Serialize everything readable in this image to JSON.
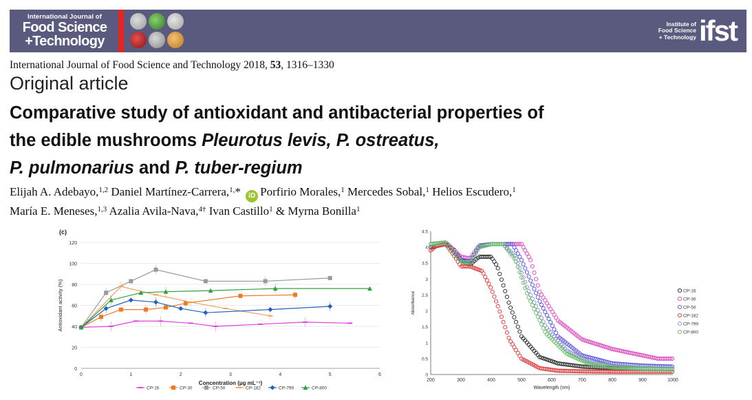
{
  "banner": {
    "journal_small": "International Journal of",
    "journal_line1": "Food Science",
    "journal_line2": "+Technology",
    "ifst_small_1": "Institute of",
    "ifst_small_2": "Food Science",
    "ifst_small_3": "+ Technology",
    "ifst_mark": "ifst",
    "colors": {
      "banner": "#5a5a7f",
      "accent": "#e52424"
    }
  },
  "citation": {
    "journal": "International Journal of Food Science and Technology 2018, ",
    "volume": "53",
    "pages": ", 1316–1330"
  },
  "section_label": "Original article",
  "title": {
    "line1": "Comparative study of antioxidant and antibacterial properties of",
    "line2_plain": "the edible mushrooms ",
    "line2_italic": "Pleurotus levis, P. ostreatus,",
    "line3_italic_a": "P. pulmonarius",
    "line3_plain": " and ",
    "line3_italic_b": "P. tuber-regium"
  },
  "authors": {
    "a1": "Elijah A. Adebayo,",
    "a1_sup": "1,2",
    "a2": " Daniel Martínez-Carrera,",
    "a2_sup": "1,",
    "a2_star": "*",
    "a3": "Porfirio Morales,",
    "a3_sup": "1",
    "a4": " Mercedes Sobal,",
    "a4_sup": "1",
    "a5": " Helios Escudero,",
    "a5_sup": "1",
    "a6": "María E. Meneses,",
    "a6_sup": "1,3",
    "a7": " Azalia Avila-Nava,",
    "a7_sup": "4†",
    "a8": " Ivan Castillo",
    "a8_sup": "1",
    "a9": " & Myrna Bonilla",
    "a9_sup": "1",
    "orcid_label": "iD"
  },
  "chart_data": [
    {
      "type": "line",
      "panel_label": "(c)",
      "xlabel": "Concentration (µg mL⁻¹)",
      "ylabel": "Antioxidant activity (%)",
      "xlim": [
        0,
        6
      ],
      "ylim": [
        0,
        120
      ],
      "xticks": [
        0,
        1,
        2,
        3,
        4,
        5,
        6
      ],
      "yticks": [
        0,
        20,
        40,
        60,
        80,
        100,
        120
      ],
      "grid": true,
      "legend_position": "bottom",
      "series": [
        {
          "name": "CP-16",
          "color": "#e040e0",
          "marker": "dash",
          "x": [
            0,
            0.6,
            1.1,
            1.6,
            2.2,
            2.7,
            3.6,
            4.5,
            5.4
          ],
          "y": [
            39,
            40,
            45,
            45,
            43,
            40,
            42,
            44,
            43
          ]
        },
        {
          "name": "CP-30",
          "color": "#f07820",
          "marker": "square",
          "x": [
            0,
            0.4,
            0.8,
            1.3,
            1.7,
            2.1,
            3.2,
            4.3
          ],
          "y": [
            39,
            49,
            56,
            56,
            58,
            62,
            69,
            70
          ]
        },
        {
          "name": "CP-50",
          "color": "#999999",
          "marker": "square",
          "x": [
            0,
            0.5,
            1.0,
            1.5,
            2.5,
            3.7,
            5.0
          ],
          "y": [
            39,
            72,
            83,
            94,
            83,
            83,
            86
          ]
        },
        {
          "name": "CP-182",
          "color": "#f0a060",
          "marker": "dash",
          "x": [
            0,
            0.8,
            1.5,
            2.2,
            2.9,
            3.8
          ],
          "y": [
            39,
            78,
            70,
            63,
            57,
            50
          ]
        },
        {
          "name": "CP-799",
          "color": "#2060c0",
          "marker": "diamond",
          "x": [
            0,
            0.5,
            1.0,
            1.5,
            2.0,
            2.5,
            3.8,
            5.0
          ],
          "y": [
            39,
            57,
            65,
            63,
            57,
            53,
            56,
            59
          ]
        },
        {
          "name": "CP-800",
          "color": "#30a040",
          "marker": "triangle",
          "x": [
            0,
            0.6,
            1.2,
            1.7,
            2.6,
            3.9,
            5.8
          ],
          "y": [
            39,
            65,
            72,
            73,
            74,
            76,
            76
          ]
        }
      ]
    },
    {
      "type": "scatter",
      "xlabel": "Wavelength (nm)",
      "ylabel": "Absorbance",
      "xlim": [
        200,
        1000
      ],
      "ylim": [
        0,
        4.5
      ],
      "xticks": [
        200,
        300,
        400,
        500,
        600,
        700,
        800,
        900,
        1000
      ],
      "yticks": [
        0,
        0.5,
        1,
        1.5,
        2,
        2.5,
        3,
        3.5,
        4,
        4.5
      ],
      "grid": false,
      "legend_position": "right",
      "series": [
        {
          "name": "CP-16",
          "color": "#222222",
          "x": [
            200,
            250,
            280,
            300,
            330,
            360,
            400,
            420,
            460,
            500,
            560,
            620,
            700,
            800,
            900,
            1000
          ],
          "y": [
            4.0,
            4.1,
            3.9,
            3.6,
            3.45,
            3.7,
            3.7,
            3.4,
            2.2,
            1.2,
            0.55,
            0.35,
            0.25,
            0.2,
            0.18,
            0.17
          ]
        },
        {
          "name": "CP-30",
          "color": "#e040c0",
          "x": [
            200,
            250,
            300,
            330,
            360,
            400,
            450,
            500,
            530,
            560,
            620,
            700,
            800,
            900,
            950,
            1000
          ],
          "y": [
            4.1,
            4.15,
            3.7,
            3.65,
            4.05,
            4.1,
            4.1,
            4.1,
            3.6,
            2.6,
            1.7,
            1.1,
            0.8,
            0.6,
            0.5,
            0.5
          ]
        },
        {
          "name": "CP-50",
          "color": "#5050e0",
          "x": [
            200,
            250,
            300,
            330,
            360,
            400,
            450,
            470,
            500,
            560,
            620,
            700,
            800,
            900,
            1000
          ],
          "y": [
            4.1,
            4.15,
            3.6,
            3.55,
            4.05,
            4.1,
            4.1,
            4.1,
            3.6,
            2.3,
            1.2,
            0.6,
            0.35,
            0.28,
            0.25
          ]
        },
        {
          "name": "CP-182",
          "color": "#e03030",
          "x": [
            200,
            220,
            250,
            280,
            300,
            330,
            370,
            400,
            420,
            460,
            500,
            560,
            620,
            700,
            800,
            900,
            1000
          ],
          "y": [
            3.9,
            4.05,
            4.1,
            3.7,
            3.4,
            3.4,
            3.25,
            2.7,
            2.2,
            1.1,
            0.5,
            0.2,
            0.12,
            0.1,
            0.09,
            0.09,
            0.09
          ]
        },
        {
          "name": "CP-799",
          "color": "#9090d0",
          "x": [
            200,
            250,
            300,
            330,
            360,
            400,
            440,
            480,
            520,
            580,
            650,
            720,
            800,
            900,
            1000
          ],
          "y": [
            4.1,
            4.15,
            3.55,
            3.5,
            4.0,
            4.1,
            4.1,
            3.7,
            2.7,
            1.5,
            0.75,
            0.4,
            0.25,
            0.2,
            0.18
          ]
        },
        {
          "name": "CP-800",
          "color": "#60c060",
          "x": [
            200,
            250,
            300,
            330,
            360,
            400,
            440,
            480,
            520,
            580,
            650,
            720,
            800,
            900,
            1000
          ],
          "y": [
            4.1,
            4.15,
            3.55,
            3.5,
            4.0,
            4.1,
            4.1,
            3.6,
            2.5,
            1.3,
            0.65,
            0.35,
            0.22,
            0.18,
            0.16
          ]
        }
      ]
    }
  ]
}
